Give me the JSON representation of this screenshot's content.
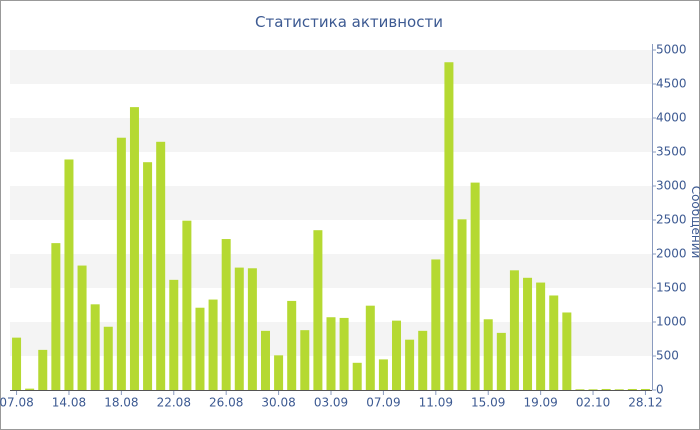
{
  "chart_data": {
    "type": "bar",
    "title": "Статистика активности",
    "y_label": "Сообщений",
    "categories": [
      "07.08",
      null,
      null,
      null,
      "14.08",
      null,
      null,
      null,
      "18.08",
      null,
      null,
      null,
      "22.08",
      null,
      null,
      null,
      "26.08",
      null,
      null,
      null,
      "30.08",
      null,
      null,
      null,
      "03.09",
      null,
      null,
      null,
      "07.09",
      null,
      null,
      null,
      "11.09",
      null,
      null,
      null,
      "15.09",
      null,
      null,
      null,
      "19.09",
      null,
      null,
      null,
      "02.10",
      null,
      null,
      null,
      "28.12"
    ],
    "values": [
      770,
      20,
      590,
      2160,
      3390,
      1830,
      1260,
      930,
      3710,
      4160,
      3350,
      3650,
      1620,
      2490,
      1210,
      1330,
      2220,
      1800,
      1790,
      870,
      510,
      1310,
      880,
      2350,
      1070,
      1060,
      400,
      1240,
      450,
      1020,
      740,
      870,
      1920,
      4820,
      2510,
      3050,
      1040,
      840,
      1760,
      1650,
      1580,
      1390,
      1140,
      10,
      10,
      15,
      10,
      15,
      15
    ],
    "color": "#b5d932",
    "ylim": [
      0,
      5000
    ],
    "yticks": [
      0,
      500,
      1000,
      1500,
      2000,
      2500,
      3000,
      3500,
      4000,
      4500,
      5000
    ],
    "grid": true
  }
}
